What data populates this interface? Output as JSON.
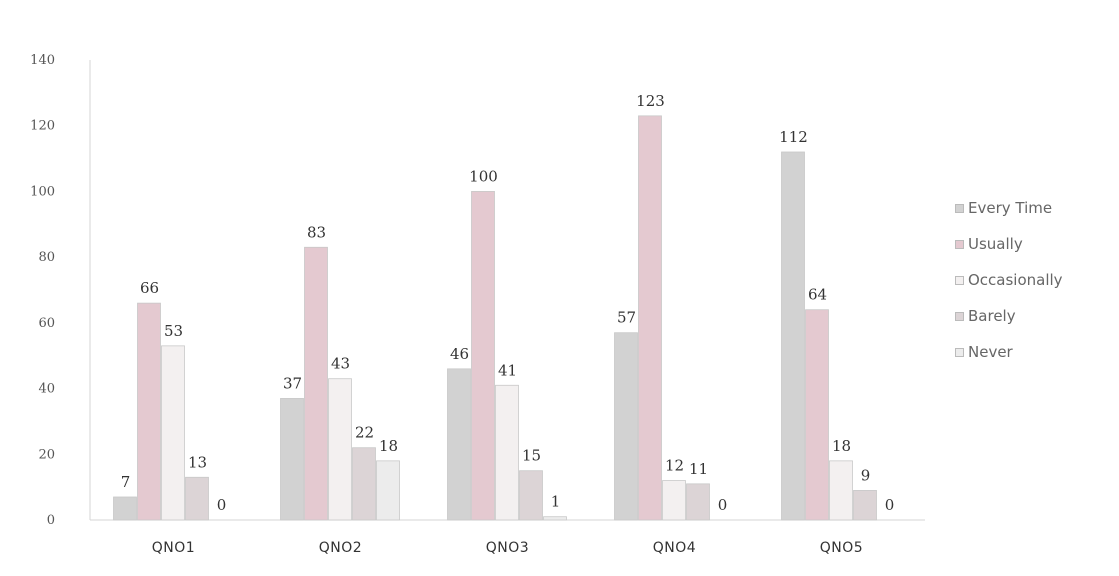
{
  "chart_data": {
    "type": "bar",
    "categories": [
      "QNO1",
      "QNO2",
      "QNO3",
      "QNO4",
      "QNO5"
    ],
    "series": [
      {
        "name": "Every Time",
        "values": [
          7,
          37,
          46,
          57,
          112
        ],
        "color": "#d2d2d2"
      },
      {
        "name": "Usually",
        "values": [
          66,
          83,
          100,
          123,
          64
        ],
        "color": "#e4c9d0"
      },
      {
        "name": "Occasionally",
        "values": [
          53,
          43,
          41,
          12,
          18
        ],
        "color": "#f3f0f0"
      },
      {
        "name": "Barely",
        "values": [
          13,
          22,
          15,
          11,
          9
        ],
        "color": "#dcd4d6"
      },
      {
        "name": "Never",
        "values": [
          0,
          18,
          1,
          0,
          0
        ],
        "color": "#ececec"
      }
    ],
    "y_ticks": [
      "0",
      "20",
      "40",
      "60",
      "80",
      "100",
      "120",
      "140"
    ],
    "ylim": [
      0,
      140
    ],
    "legend_position": "right",
    "grid": false
  }
}
